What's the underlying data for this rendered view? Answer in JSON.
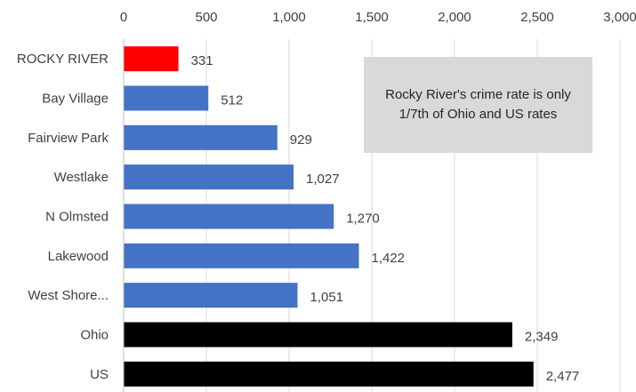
{
  "chart_data": {
    "type": "bar",
    "orientation": "horizontal",
    "categories": [
      "ROCKY RIVER",
      "Bay Village",
      "Fairview Park",
      "Westlake",
      "N Olmsted",
      "Lakewood",
      "West Shore...",
      "Ohio",
      "US"
    ],
    "values": [
      331,
      512,
      929,
      1027,
      1270,
      1422,
      1051,
      2349,
      2477
    ],
    "value_labels": [
      "331",
      "512",
      "929",
      "1,027",
      "1,270",
      "1,422",
      "1,051",
      "2,349",
      "2,477"
    ],
    "bar_colors": [
      "#ff0000",
      "#4472c4",
      "#4472c4",
      "#4472c4",
      "#4472c4",
      "#4472c4",
      "#4472c4",
      "#000000",
      "#000000"
    ],
    "xlim": [
      0,
      3000
    ],
    "xticks": [
      0,
      500,
      1000,
      1500,
      2000,
      2500,
      3000
    ],
    "xtick_labels": [
      "0",
      "500",
      "1,000",
      "1,500",
      "2,000",
      "2,500",
      "3,000"
    ],
    "axis_position": "top",
    "grid": true,
    "title": "",
    "xlabel": "",
    "ylabel": "",
    "annotation": "Rocky River's crime rate is only 1/7th of Ohio and US rates"
  }
}
